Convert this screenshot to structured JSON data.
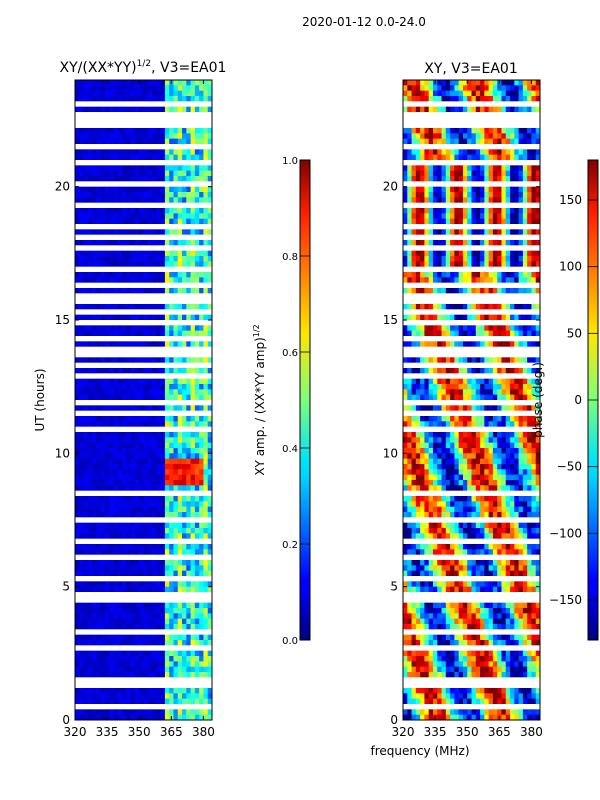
{
  "suptitle": "2020-01-12 0.0-24.0",
  "chart_data": [
    {
      "type": "heatmap",
      "title": "XY/(XX*YY)^1/2, V3=EA01",
      "title_main": "XY/(XX*YY)",
      "title_exp": "1/2",
      "title_tail": ", V3=EA01",
      "ylabel": "UT (hours)",
      "xlabel": "",
      "xlim": [
        320,
        384
      ],
      "ylim": [
        0,
        24
      ],
      "xticks": [
        "320",
        "335",
        "350",
        "365",
        "380"
      ],
      "xtick_values": [
        320,
        335,
        350,
        365,
        380
      ],
      "yticks": [
        "0",
        "5",
        "10",
        "15",
        "20"
      ],
      "ytick_values": [
        0,
        5,
        10,
        15,
        20
      ],
      "quantity": "normalized XY amplitude",
      "value_range": [
        0,
        1
      ],
      "background_value": 0.05,
      "active_band_mhz": [
        362,
        384
      ],
      "peak_hours": [
        8.8,
        9.8
      ],
      "peak_value": 0.85,
      "flagged_hours": [
        0.4,
        1.2,
        1.4,
        2.8,
        3.2,
        3.3,
        4.5,
        4.8,
        5.3,
        6.1,
        6.7,
        6.8,
        7.5,
        8.5,
        10.8,
        11.4,
        11.9,
        12.9,
        13.3,
        13.7,
        13.9,
        14.2,
        14.8,
        15.2,
        15.7,
        15.9,
        16.2,
        16.9,
        17.7,
        18.0,
        18.5,
        19.2,
        20.1,
        20.9,
        21.5,
        22.3,
        22.5,
        22.7,
        23.0
      ]
    },
    {
      "type": "heatmap",
      "title": "XY, V3=EA01",
      "xlabel": "frequency (MHz)",
      "ylabel": "",
      "xlim": [
        320,
        384
      ],
      "ylim": [
        0,
        24
      ],
      "xticks": [
        "320",
        "335",
        "350",
        "365",
        "380"
      ],
      "xtick_values": [
        320,
        335,
        350,
        365,
        380
      ],
      "yticks": [
        "0",
        "5",
        "10",
        "15",
        "20"
      ],
      "ytick_values": [
        0,
        5,
        10,
        15,
        20
      ],
      "quantity": "XY phase (deg)",
      "value_range": [
        -180,
        180
      ],
      "flagged_hours": [
        0.4,
        1.2,
        1.4,
        2.8,
        3.2,
        3.3,
        4.5,
        4.8,
        5.3,
        6.1,
        6.7,
        6.8,
        7.5,
        8.5,
        10.8,
        11.4,
        11.9,
        12.9,
        13.3,
        13.7,
        13.9,
        14.2,
        14.8,
        15.2,
        15.7,
        15.9,
        16.2,
        16.9,
        17.7,
        18.0,
        18.5,
        19.2,
        20.1,
        20.9,
        21.5,
        22.3,
        22.5,
        22.7,
        23.0
      ]
    }
  ],
  "colorbars": [
    {
      "label": "XY amp. / (XX*YY amp)^1/2",
      "label_main": "XY amp. / (XX*YY amp)",
      "label_exp": "1/2",
      "range": [
        0,
        1
      ],
      "ticks": [
        "0.0",
        "0.2",
        "0.4",
        "0.6",
        "0.8",
        "1.0"
      ],
      "tick_values": [
        0,
        0.2,
        0.4,
        0.6,
        0.8,
        1.0
      ]
    },
    {
      "label": "phase (deg.)",
      "range": [
        -180,
        180
      ],
      "ticks": [
        "−150",
        "−100",
        "−50",
        "0",
        "50",
        "100",
        "150"
      ],
      "tick_values": [
        -150,
        -100,
        -50,
        0,
        50,
        100,
        150
      ]
    }
  ],
  "colormap": "jet"
}
